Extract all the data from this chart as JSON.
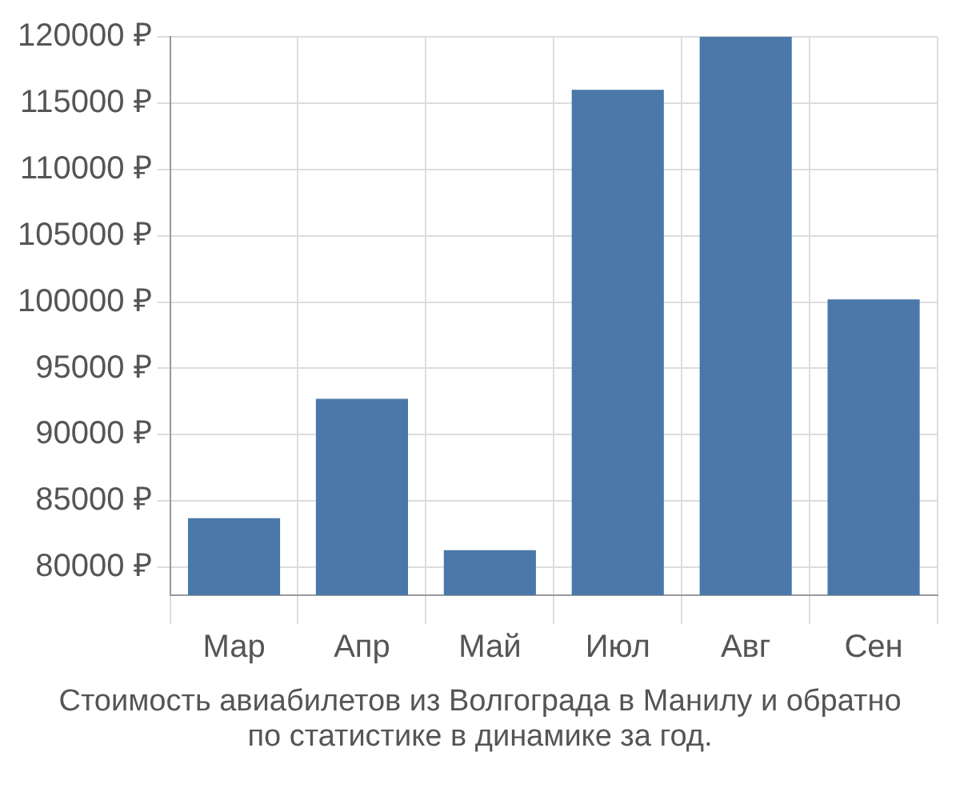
{
  "chart_data": {
    "type": "bar",
    "title": "Стоимость авиабилетов из Волгограда в Манилу и обратно",
    "subtitle": "по статистике в динамике за год.",
    "categories": [
      "Мар",
      "Апр",
      "Май",
      "Июл",
      "Авг",
      "Сен"
    ],
    "values": [
      83700,
      92700,
      81300,
      116000,
      120000,
      100200
    ],
    "color": "#4a78a8",
    "ylim": [
      77900,
      120000
    ],
    "yticks": [
      {
        "value": 80000,
        "label": "80000 ₽"
      },
      {
        "value": 85000,
        "label": "85000 ₽"
      },
      {
        "value": 90000,
        "label": "90000 ₽"
      },
      {
        "value": 95000,
        "label": "95000 ₽"
      },
      {
        "value": 100000,
        "label": "100000 ₽"
      },
      {
        "value": 105000,
        "label": "105000 ₽"
      },
      {
        "value": 110000,
        "label": "110000 ₽"
      },
      {
        "value": 115000,
        "label": "115000 ₽"
      },
      {
        "value": 120000,
        "label": "120000 ₽"
      }
    ],
    "grid": true
  }
}
